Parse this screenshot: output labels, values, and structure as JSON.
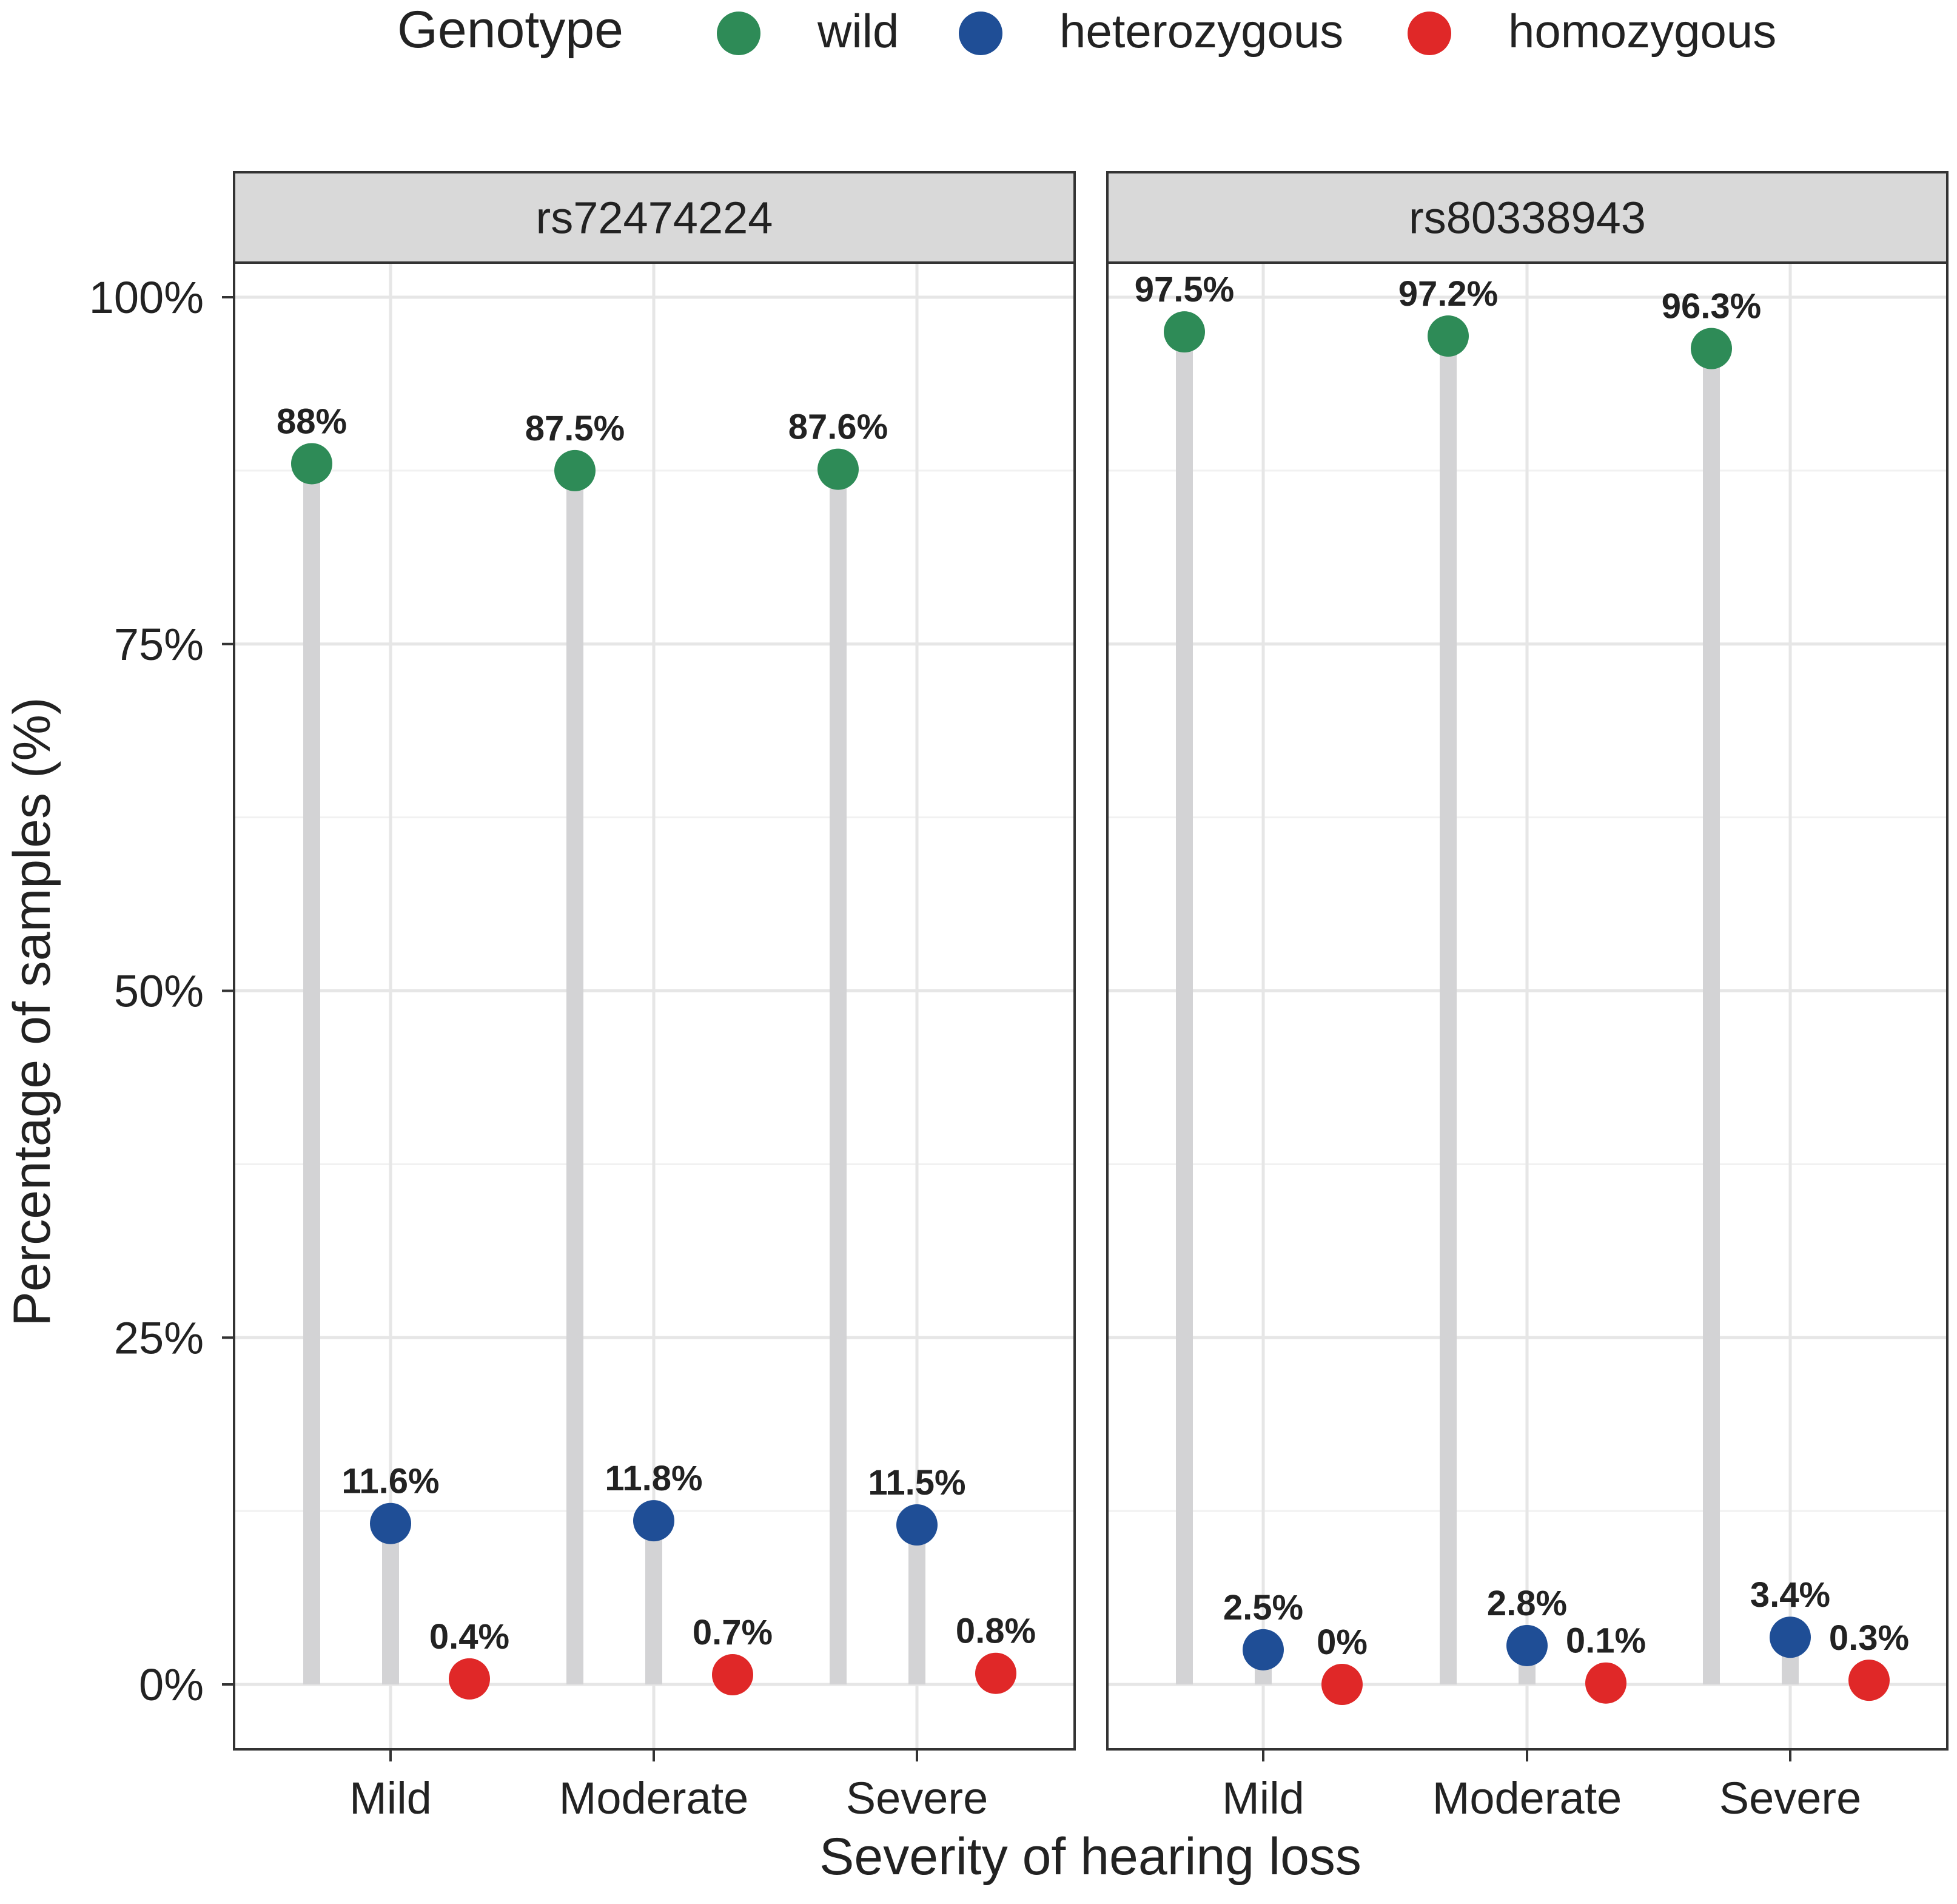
{
  "legend": {
    "title": "Genotype",
    "items": [
      {
        "key": "wild",
        "label": "wild",
        "color": "#2e8b57"
      },
      {
        "key": "heterozygous",
        "label": "heterozygous",
        "color": "#1f4e96"
      },
      {
        "key": "homozygous",
        "label": "homozygous",
        "color": "#e02828"
      }
    ]
  },
  "chart_data": {
    "type": "scatter",
    "subtype": "faceted lollipop (dodged)",
    "xlabel": "Severity of hearing loss",
    "ylabel": "Percentage of samples (%)",
    "ylim": [
      0,
      100
    ],
    "yticks": [
      0,
      25,
      50,
      75,
      100
    ],
    "ytick_labels": [
      "0%",
      "25%",
      "50%",
      "75%",
      "100%"
    ],
    "grid": true,
    "legend_position": "top",
    "categories": [
      "Mild",
      "Moderate",
      "Severe"
    ],
    "genotypes": [
      "wild",
      "heterozygous",
      "homozygous"
    ],
    "facets": [
      {
        "title": "rs72474224",
        "series": [
          {
            "name": "wild",
            "values": [
              88.0,
              87.5,
              87.6
            ],
            "labels": [
              "88%",
              "87.5%",
              "87.6%"
            ]
          },
          {
            "name": "heterozygous",
            "values": [
              11.6,
              11.8,
              11.5
            ],
            "labels": [
              "11.6%",
              "11.8%",
              "11.5%"
            ]
          },
          {
            "name": "homozygous",
            "values": [
              0.4,
              0.7,
              0.8
            ],
            "labels": [
              "0.4%",
              "0.7%",
              "0.8%"
            ]
          }
        ]
      },
      {
        "title": "rs80338943",
        "series": [
          {
            "name": "wild",
            "values": [
              97.5,
              97.2,
              96.3
            ],
            "labels": [
              "97.5%",
              "97.2%",
              "96.3%"
            ]
          },
          {
            "name": "heterozygous",
            "values": [
              2.5,
              2.8,
              3.4
            ],
            "labels": [
              "2.5%",
              "2.8%",
              "3.4%"
            ]
          },
          {
            "name": "homozygous",
            "values": [
              0.0,
              0.1,
              0.3
            ],
            "labels": [
              "0%",
              "0.1%",
              "0.3%"
            ]
          }
        ]
      }
    ]
  }
}
